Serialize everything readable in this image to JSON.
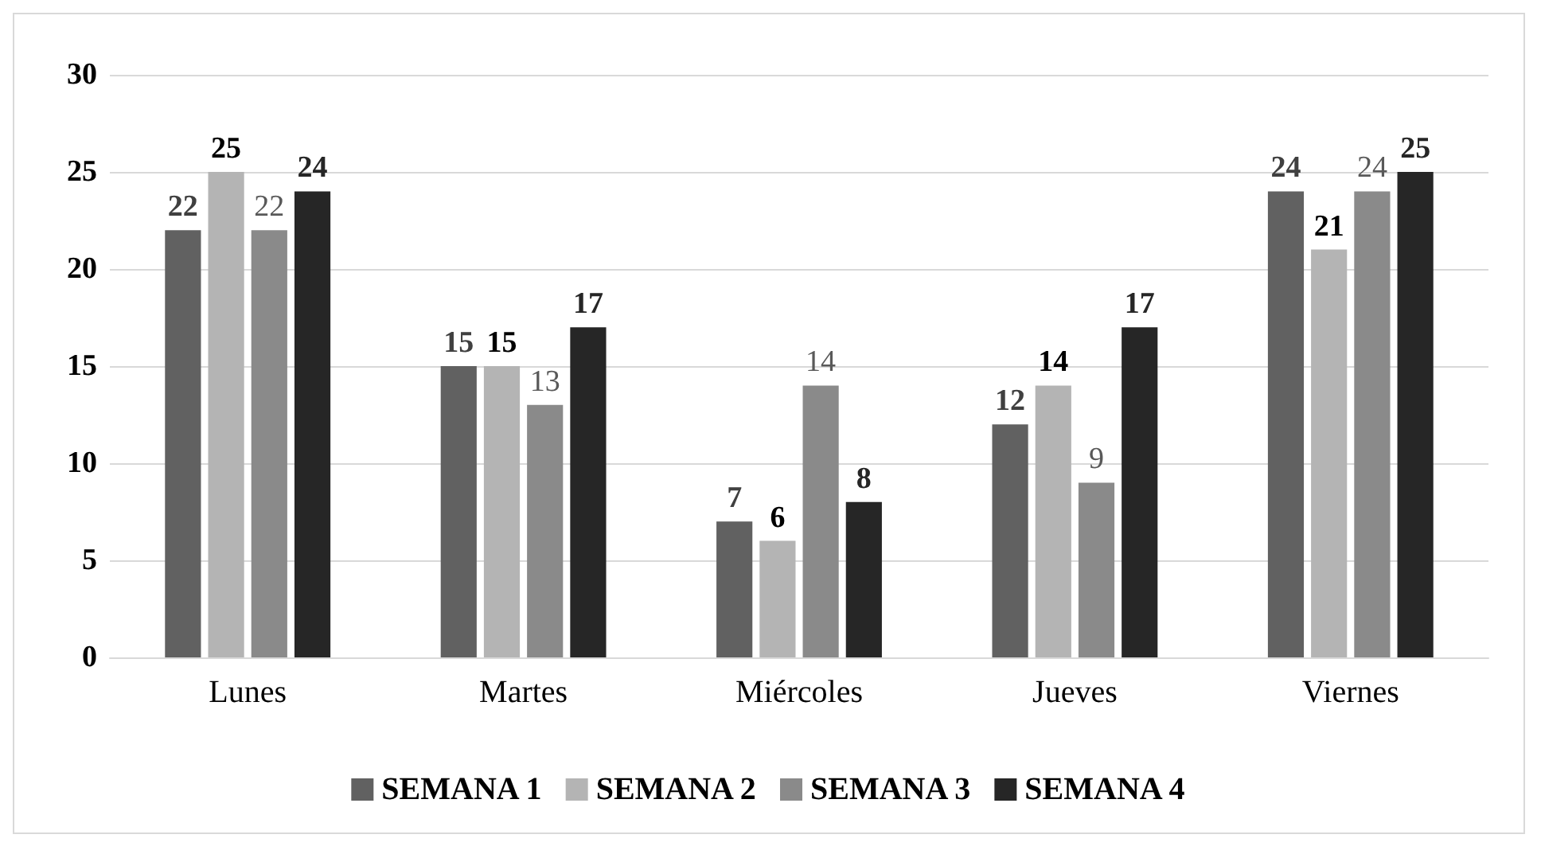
{
  "chart_data": {
    "type": "bar",
    "categories": [
      "Lunes",
      "Martes",
      "Miércoles",
      "Jueves",
      "Viernes"
    ],
    "series": [
      {
        "name": "SEMANA 1",
        "color": "#616161",
        "values": [
          22,
          15,
          7,
          12,
          24
        ]
      },
      {
        "name": "SEMANA 2",
        "color": "#b4b4b4",
        "values": [
          25,
          15,
          6,
          14,
          21
        ]
      },
      {
        "name": "SEMANA 3",
        "color": "#8a8a8a",
        "values": [
          22,
          13,
          14,
          9,
          24
        ]
      },
      {
        "name": "SEMANA 4",
        "color": "#262626",
        "values": [
          24,
          17,
          8,
          17,
          25
        ]
      }
    ],
    "ylim": [
      0,
      30
    ],
    "yticks": [
      0,
      5,
      10,
      15,
      20,
      25,
      30
    ],
    "grid": "y",
    "legend": "bottom",
    "data_labels": true
  }
}
